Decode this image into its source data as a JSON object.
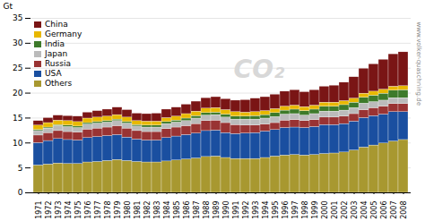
{
  "chart_data": {
    "type": "bar",
    "stacked": true,
    "ylabel": "Gt",
    "annotations": [
      "CO₂",
      "www.volker-quaschning.de"
    ],
    "categories": [
      1971,
      1972,
      1973,
      1974,
      1975,
      1976,
      1977,
      1978,
      1979,
      1980,
      1981,
      1982,
      1983,
      1984,
      1985,
      1986,
      1987,
      1988,
      1989,
      1990,
      1991,
      1992,
      1993,
      1994,
      1995,
      1996,
      1997,
      1998,
      1999,
      2000,
      2001,
      2002,
      2003,
      2004,
      2005,
      2006,
      2007,
      2008
    ],
    "series": [
      {
        "name": "Others",
        "color": "#a89830",
        "values": [
          5.5,
          5.7,
          5.9,
          5.8,
          5.8,
          6.1,
          6.2,
          6.4,
          6.6,
          6.4,
          6.2,
          6.1,
          6.1,
          6.3,
          6.5,
          6.7,
          6.9,
          7.2,
          7.3,
          7.0,
          6.8,
          6.8,
          6.8,
          7.0,
          7.3,
          7.5,
          7.6,
          7.5,
          7.6,
          7.8,
          7.9,
          8.1,
          8.5,
          9.1,
          9.5,
          9.9,
          10.3,
          10.6
        ]
      },
      {
        "name": "USA",
        "color": "#1a4fa0",
        "values": [
          4.5,
          4.7,
          4.9,
          4.8,
          4.7,
          4.9,
          5.0,
          5.0,
          5.0,
          4.7,
          4.5,
          4.4,
          4.4,
          4.7,
          4.8,
          4.9,
          5.0,
          5.2,
          5.2,
          5.0,
          5.0,
          5.1,
          5.2,
          5.3,
          5.3,
          5.5,
          5.5,
          5.5,
          5.6,
          5.8,
          5.7,
          5.7,
          5.8,
          5.9,
          5.9,
          5.8,
          5.9,
          5.6
        ]
      },
      {
        "name": "Russia",
        "color": "#993333",
        "values": [
          1.5,
          1.6,
          1.6,
          1.6,
          1.6,
          1.7,
          1.7,
          1.7,
          1.8,
          1.8,
          1.7,
          1.7,
          1.7,
          1.8,
          1.8,
          1.8,
          1.9,
          2.0,
          2.0,
          2.0,
          1.8,
          1.6,
          1.5,
          1.4,
          1.4,
          1.5,
          1.5,
          1.4,
          1.4,
          1.5,
          1.5,
          1.5,
          1.5,
          1.6,
          1.6,
          1.6,
          1.6,
          1.6
        ]
      },
      {
        "name": "Japan",
        "color": "#bbbbbb",
        "values": [
          0.9,
          0.9,
          1.0,
          1.0,
          0.9,
          1.0,
          1.0,
          1.0,
          1.0,
          1.0,
          0.9,
          0.9,
          0.9,
          1.0,
          1.0,
          1.0,
          1.1,
          1.1,
          1.1,
          1.1,
          1.1,
          1.2,
          1.2,
          1.2,
          1.2,
          1.2,
          1.2,
          1.1,
          1.2,
          1.2,
          1.2,
          1.2,
          1.2,
          1.3,
          1.2,
          1.2,
          1.2,
          1.2
        ]
      },
      {
        "name": "India",
        "color": "#3d7a2a",
        "values": [
          0.2,
          0.2,
          0.2,
          0.3,
          0.3,
          0.3,
          0.3,
          0.3,
          0.3,
          0.3,
          0.3,
          0.4,
          0.4,
          0.4,
          0.4,
          0.5,
          0.5,
          0.5,
          0.5,
          0.6,
          0.6,
          0.6,
          0.7,
          0.7,
          0.8,
          0.8,
          0.9,
          0.9,
          0.9,
          1.0,
          1.0,
          1.1,
          1.1,
          1.2,
          1.3,
          1.4,
          1.5,
          1.6
        ]
      },
      {
        "name": "Germany",
        "color": "#e8b800",
        "values": [
          0.9,
          0.9,
          0.9,
          0.9,
          0.9,
          0.9,
          0.9,
          0.9,
          0.9,
          0.9,
          0.8,
          0.8,
          0.8,
          0.8,
          0.8,
          0.9,
          0.9,
          0.9,
          0.9,
          0.9,
          0.9,
          0.8,
          0.8,
          0.8,
          0.8,
          0.8,
          0.8,
          0.8,
          0.8,
          0.8,
          0.8,
          0.8,
          0.8,
          0.8,
          0.8,
          0.8,
          0.8,
          0.8
        ]
      },
      {
        "name": "China",
        "color": "#7a1515",
        "values": [
          0.9,
          1.0,
          1.0,
          1.0,
          1.1,
          1.2,
          1.3,
          1.4,
          1.5,
          1.5,
          1.5,
          1.5,
          1.6,
          1.7,
          1.8,
          1.9,
          2.0,
          2.1,
          2.2,
          2.2,
          2.3,
          2.5,
          2.7,
          2.8,
          2.9,
          3.0,
          3.1,
          3.0,
          3.1,
          3.2,
          3.4,
          3.7,
          4.3,
          5.0,
          5.5,
          6.0,
          6.5,
          6.8
        ]
      }
    ],
    "ylim": [
      0,
      35
    ],
    "yticks": [
      0,
      5,
      10,
      15,
      20,
      25,
      30,
      35
    ],
    "grid": true,
    "legend": "upper left"
  }
}
